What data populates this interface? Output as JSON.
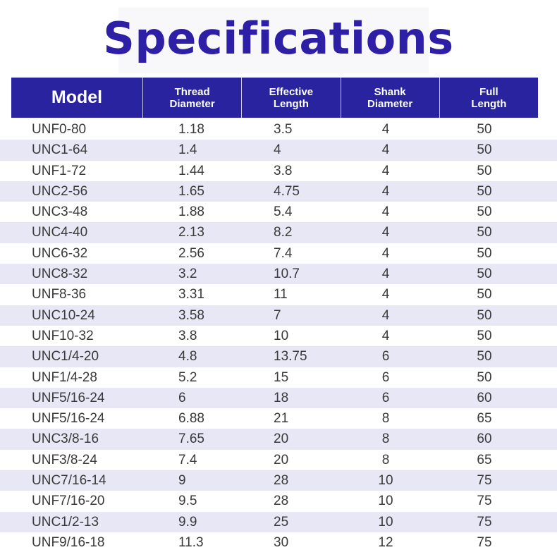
{
  "title": "Specifications",
  "headers": [
    "Model",
    "Thread\nDiameter",
    "Effective\nLength",
    "Shank\nDiameter",
    "Full\nLength"
  ],
  "rows": [
    [
      "UNF0-80",
      "1.18",
      "3.5",
      "4",
      "50"
    ],
    [
      "UNC1-64",
      "1.4",
      "4",
      "4",
      "50"
    ],
    [
      "UNF1-72",
      "1.44",
      "3.8",
      "4",
      "50"
    ],
    [
      "UNC2-56",
      "1.65",
      "4.75",
      "4",
      "50"
    ],
    [
      "UNC3-48",
      "1.88",
      "5.4",
      "4",
      "50"
    ],
    [
      "UNC4-40",
      "2.13",
      "8.2",
      "4",
      "50"
    ],
    [
      "UNC6-32",
      "2.56",
      "7.4",
      "4",
      "50"
    ],
    [
      "UNC8-32",
      "3.2",
      "10.7",
      "4",
      "50"
    ],
    [
      "UNF8-36",
      "3.31",
      "11",
      "4",
      "50"
    ],
    [
      "UNC10-24",
      "3.58",
      "7",
      "4",
      "50"
    ],
    [
      "UNF10-32",
      "3.8",
      "10",
      "4",
      "50"
    ],
    [
      "UNC1/4-20",
      "4.8",
      "13.75",
      "6",
      "50"
    ],
    [
      "UNF1/4-28",
      "5.2",
      "15",
      "6",
      "50"
    ],
    [
      "UNF5/16-24",
      "6",
      "18",
      "6",
      "60"
    ],
    [
      "UNF5/16-24",
      "6.88",
      "21",
      "8",
      "65"
    ],
    [
      "UNC3/8-16",
      "7.65",
      "20",
      "8",
      "60"
    ],
    [
      "UNF3/8-24",
      "7.4",
      "20",
      "8",
      "65"
    ],
    [
      "UNC7/16-14",
      "9",
      "28",
      "10",
      "75"
    ],
    [
      "UNF7/16-20",
      "9.5",
      "28",
      "10",
      "75"
    ],
    [
      "UNC1/2-13",
      "9.9",
      "25",
      "10",
      "75"
    ],
    [
      "UNF9/16-18",
      "11.3",
      "30",
      "12",
      "75"
    ]
  ],
  "colors": {
    "header_bg": "#2a23a0",
    "title": "#2d1fa6",
    "stripe": "#e7e7f5"
  }
}
